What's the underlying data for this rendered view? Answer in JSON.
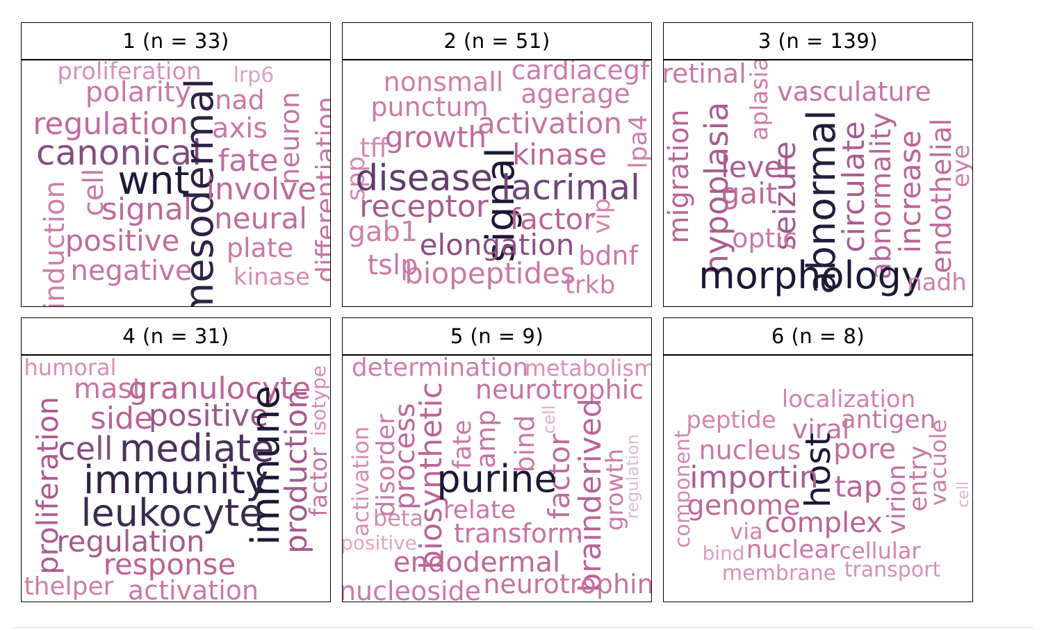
{
  "chart_data": {
    "type": "wordcloud",
    "facet_strip_labels": [
      "1 (n = 33)",
      "2 (n = 51)",
      "3 (n = 139)",
      "4 (n = 31)",
      "5 (n = 9)",
      "6 (n = 8)"
    ],
    "color_scale": {
      "low": "#e2cfe0",
      "high": "#1e1836"
    },
    "panels": [
      {
        "label": "1 (n = 33)",
        "words": [
          {
            "text": "proliferation",
            "weight": 0.28
          },
          {
            "text": "lrp6",
            "weight": 0.2
          },
          {
            "text": "polarity",
            "weight": 0.42
          },
          {
            "text": "nad",
            "weight": 0.42
          },
          {
            "text": "regulation",
            "weight": 0.5
          },
          {
            "text": "axis",
            "weight": 0.42
          },
          {
            "text": "neuron",
            "weight": 0.45
          },
          {
            "text": "canonical",
            "weight": 0.72
          },
          {
            "text": "mesodermal",
            "weight": 0.95
          },
          {
            "text": "fate",
            "weight": 0.5
          },
          {
            "text": "differentiation",
            "weight": 0.45
          },
          {
            "text": "wnt",
            "weight": 1.0
          },
          {
            "text": "cell",
            "weight": 0.42
          },
          {
            "text": "involve",
            "weight": 0.52
          },
          {
            "text": "induction",
            "weight": 0.38
          },
          {
            "text": "signal",
            "weight": 0.52
          },
          {
            "text": "neural",
            "weight": 0.5
          },
          {
            "text": "positive",
            "weight": 0.5
          },
          {
            "text": "plate",
            "weight": 0.42
          },
          {
            "text": "negative",
            "weight": 0.45
          },
          {
            "text": "kinase",
            "weight": 0.3
          }
        ]
      },
      {
        "label": "2 (n = 51)",
        "words": [
          {
            "text": "cardiacegf",
            "weight": 0.4
          },
          {
            "text": "nonsmall",
            "weight": 0.38
          },
          {
            "text": "agerage",
            "weight": 0.4
          },
          {
            "text": "punctum",
            "weight": 0.4
          },
          {
            "text": "activation",
            "weight": 0.45
          },
          {
            "text": "tff",
            "weight": 0.32
          },
          {
            "text": "growth",
            "weight": 0.52
          },
          {
            "text": "lpa4",
            "weight": 0.38
          },
          {
            "text": "kinase",
            "weight": 0.55
          },
          {
            "text": "spp",
            "weight": 0.32
          },
          {
            "text": "disease",
            "weight": 0.82
          },
          {
            "text": "signal",
            "weight": 1.0
          },
          {
            "text": "lacrimal",
            "weight": 0.78
          },
          {
            "text": "receptor",
            "weight": 0.6
          },
          {
            "text": "factor",
            "weight": 0.55
          },
          {
            "text": "gab1",
            "weight": 0.38
          },
          {
            "text": "vip",
            "weight": 0.35
          },
          {
            "text": "elongation",
            "weight": 0.7
          },
          {
            "text": "bdnf",
            "weight": 0.42
          },
          {
            "text": "tslp",
            "weight": 0.42
          },
          {
            "text": "biopeptides",
            "weight": 0.42
          },
          {
            "text": "trkb",
            "weight": 0.38
          }
        ]
      },
      {
        "label": "3 (n = 139)",
        "words": [
          {
            "text": "retinal",
            "weight": 0.42
          },
          {
            "text": "aplasia",
            "weight": 0.38
          },
          {
            "text": "vasculature",
            "weight": 0.45
          },
          {
            "text": "migration",
            "weight": 0.55
          },
          {
            "text": "hypoplasia",
            "weight": 0.6
          },
          {
            "text": "level",
            "weight": 0.6
          },
          {
            "text": "abnormality",
            "weight": 0.55
          },
          {
            "text": "increase",
            "weight": 0.55
          },
          {
            "text": "seizure",
            "weight": 0.62
          },
          {
            "text": "abnormal",
            "weight": 0.98
          },
          {
            "text": "circulate",
            "weight": 0.6
          },
          {
            "text": "endothelial",
            "weight": 0.5
          },
          {
            "text": "eye",
            "weight": 0.38
          },
          {
            "text": "gait",
            "weight": 0.52
          },
          {
            "text": "optic",
            "weight": 0.42
          },
          {
            "text": "morphology",
            "weight": 1.0
          },
          {
            "text": "nadh",
            "weight": 0.38
          }
        ]
      },
      {
        "label": "4 (n = 31)",
        "words": [
          {
            "text": "humoral",
            "weight": 0.28
          },
          {
            "text": "isotype",
            "weight": 0.3
          },
          {
            "text": "mast",
            "weight": 0.45
          },
          {
            "text": "granulocyte",
            "weight": 0.55
          },
          {
            "text": "proliferation",
            "weight": 0.6
          },
          {
            "text": "side",
            "weight": 0.55
          },
          {
            "text": "positive",
            "weight": 0.65
          },
          {
            "text": "production",
            "weight": 0.62
          },
          {
            "text": "factor",
            "weight": 0.45
          },
          {
            "text": "cell",
            "weight": 0.72
          },
          {
            "text": "mediate",
            "weight": 0.88
          },
          {
            "text": "immune",
            "weight": 1.0
          },
          {
            "text": "immunity",
            "weight": 0.95
          },
          {
            "text": "leukocyte",
            "weight": 0.92
          },
          {
            "text": "regulation",
            "weight": 0.62
          },
          {
            "text": "response",
            "weight": 0.55
          },
          {
            "text": "thelper",
            "weight": 0.38
          },
          {
            "text": "activation",
            "weight": 0.42
          }
        ]
      },
      {
        "label": "5 (n = 9)",
        "words": [
          {
            "text": "determination",
            "weight": 0.38
          },
          {
            "text": "metabolism",
            "weight": 0.28
          },
          {
            "text": "neurotrophic",
            "weight": 0.45
          },
          {
            "text": "disorder",
            "weight": 0.42
          },
          {
            "text": "process",
            "weight": 0.52
          },
          {
            "text": "biosynthetic",
            "weight": 0.55
          },
          {
            "text": "fate",
            "weight": 0.42
          },
          {
            "text": "amp",
            "weight": 0.45
          },
          {
            "text": "cell",
            "weight": 0.15
          },
          {
            "text": "bind",
            "weight": 0.42
          },
          {
            "text": "factor",
            "weight": 0.5
          },
          {
            "text": "brainderived",
            "weight": 0.55
          },
          {
            "text": "growth",
            "weight": 0.4
          },
          {
            "text": "regulation",
            "weight": 0.1
          },
          {
            "text": "activation",
            "weight": 0.3
          },
          {
            "text": "purine",
            "weight": 1.0
          },
          {
            "text": "beta",
            "weight": 0.32
          },
          {
            "text": "relate",
            "weight": 0.42
          },
          {
            "text": "transform",
            "weight": 0.45
          },
          {
            "text": "positive",
            "weight": 0.18
          },
          {
            "text": "endodermal",
            "weight": 0.52
          },
          {
            "text": "nucleoside",
            "weight": 0.42
          },
          {
            "text": "neurotrophin",
            "weight": 0.45
          }
        ]
      },
      {
        "label": "6 (n = 8)",
        "words": [
          {
            "text": "localization",
            "weight": 0.35
          },
          {
            "text": "component",
            "weight": 0.32
          },
          {
            "text": "peptide",
            "weight": 0.35
          },
          {
            "text": "viral",
            "weight": 0.45
          },
          {
            "text": "antigen",
            "weight": 0.42
          },
          {
            "text": "host",
            "weight": 1.0
          },
          {
            "text": "nucleus",
            "weight": 0.42
          },
          {
            "text": "pore",
            "weight": 0.48
          },
          {
            "text": "vacuole",
            "weight": 0.38
          },
          {
            "text": "entry",
            "weight": 0.42
          },
          {
            "text": "cell",
            "weight": 0.12
          },
          {
            "text": "importin",
            "weight": 0.6
          },
          {
            "text": "virion",
            "weight": 0.48
          },
          {
            "text": "tap",
            "weight": 0.55
          },
          {
            "text": "genome",
            "weight": 0.52
          },
          {
            "text": "complex",
            "weight": 0.55
          },
          {
            "text": "via",
            "weight": 0.35
          },
          {
            "text": "bind",
            "weight": 0.22
          },
          {
            "text": "nuclear",
            "weight": 0.42
          },
          {
            "text": "cellular",
            "weight": 0.35
          },
          {
            "text": "membrane",
            "weight": 0.28
          },
          {
            "text": "transport",
            "weight": 0.28
          }
        ]
      }
    ]
  }
}
